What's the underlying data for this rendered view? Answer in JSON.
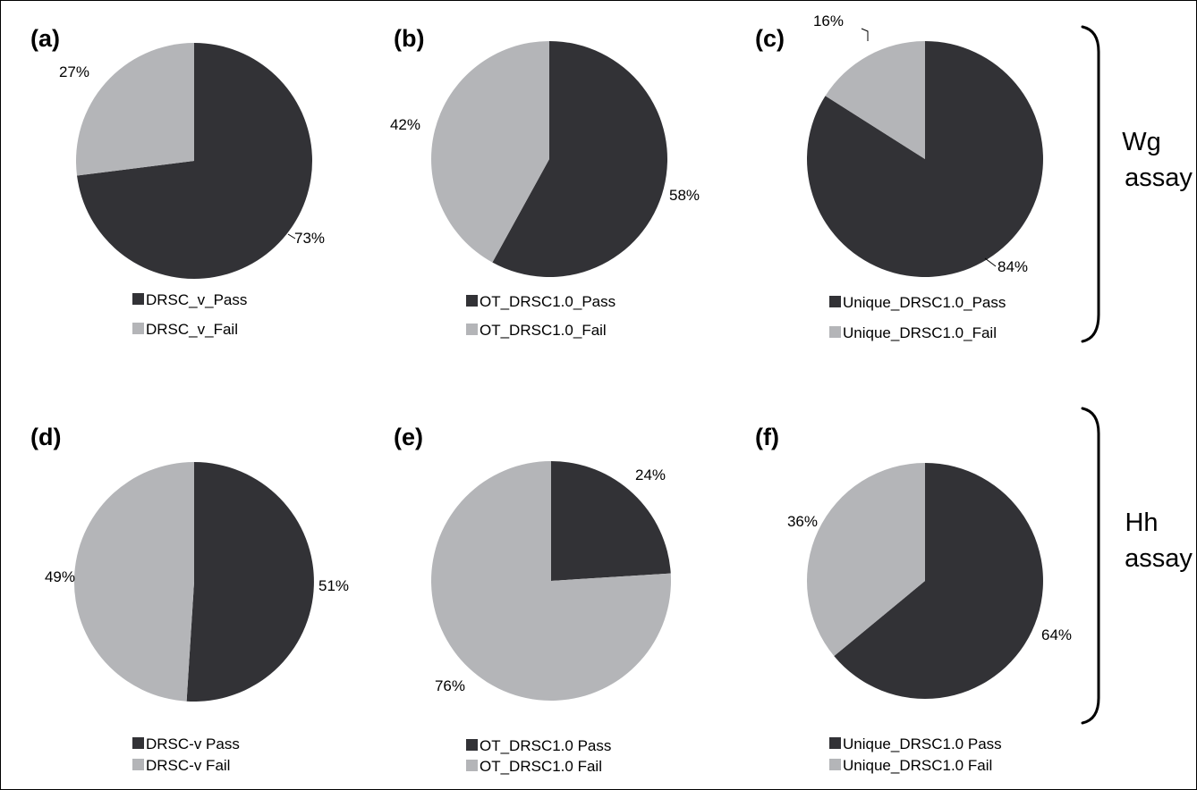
{
  "colors": {
    "pass": "#323236",
    "fail": "#b4b5b8"
  },
  "groups": [
    {
      "label_line1": "Wg",
      "label_line2": "assay"
    },
    {
      "label_line1": "Hh",
      "label_line2": "assay"
    }
  ],
  "chart_data": [
    {
      "type": "pie",
      "panel": "(a)",
      "slices": [
        {
          "label": "DRSC_v_Pass",
          "value": 73,
          "text": "73%"
        },
        {
          "label": "DRSC_v_Fail",
          "value": 27,
          "text": "27%"
        }
      ],
      "legend": "bottom"
    },
    {
      "type": "pie",
      "panel": "(b)",
      "slices": [
        {
          "label": "OT_DRSC1.0_Pass",
          "value": 58,
          "text": "58%"
        },
        {
          "label": "OT_DRSC1.0_Fail",
          "value": 42,
          "text": "42%"
        }
      ],
      "legend": "bottom"
    },
    {
      "type": "pie",
      "panel": "(c)",
      "slices": [
        {
          "label": "Unique_DRSC1.0_Pass",
          "value": 84,
          "text": "84%"
        },
        {
          "label": "Unique_DRSC1.0_Fail",
          "value": 16,
          "text": "16%"
        }
      ],
      "legend": "bottom"
    },
    {
      "type": "pie",
      "panel": "(d)",
      "slices": [
        {
          "label": "DRSC-v Pass",
          "value": 51,
          "text": "51%"
        },
        {
          "label": "DRSC-v Fail",
          "value": 49,
          "text": "49%"
        }
      ],
      "legend": "bottom"
    },
    {
      "type": "pie",
      "panel": "(e)",
      "slices": [
        {
          "label": "OT_DRSC1.0 Pass",
          "value": 24,
          "text": "24%"
        },
        {
          "label": "OT_DRSC1.0 Fail",
          "value": 76,
          "text": "76%"
        }
      ],
      "legend": "bottom"
    },
    {
      "type": "pie",
      "panel": "(f)",
      "slices": [
        {
          "label": "Unique_DRSC1.0 Pass",
          "value": 64,
          "text": "64%"
        },
        {
          "label": "Unique_DRSC1.0 Fail",
          "value": 36,
          "text": "36%"
        }
      ],
      "legend": "bottom"
    }
  ]
}
